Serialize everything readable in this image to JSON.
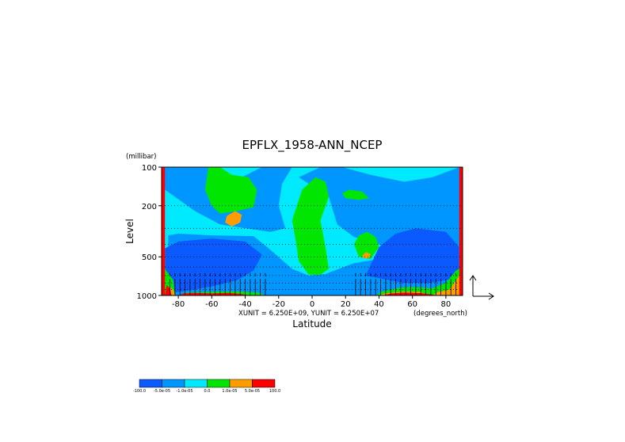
{
  "chart_data": {
    "type": "heatmap",
    "title": "EPFLX_1958-ANN_NCEP",
    "xlabel": "Latitude",
    "ylabel": "Level",
    "y_units": "(millibar)",
    "x_units": "(degrees_north)",
    "x_ticks": [
      -80,
      -60,
      -40,
      -20,
      0,
      20,
      40,
      60,
      80
    ],
    "y_ticks": [
      100,
      200,
      500,
      1000
    ],
    "xlim": [
      -90,
      90
    ],
    "ylim": [
      1000,
      100
    ],
    "y_scale": "log",
    "vector_units": "XUNIT = 6.250E+09, YUNIT = 6.250E+07",
    "colorbar": {
      "levels": [
        "-100.0",
        "-5.0e-05",
        "-1.0e-05",
        "0.0",
        "1.0e-05",
        "5.0e-05",
        "100.0"
      ],
      "colors": [
        "#0a5aff",
        "#0096ff",
        "#00eaff",
        "#00e600",
        "#ff9c00",
        "#ff0000"
      ]
    },
    "regions": [
      {
        "class": 2,
        "poly": [
          [
            -90,
            1000
          ],
          [
            -90,
            100
          ],
          [
            90,
            100
          ],
          [
            90,
            1000
          ]
        ]
      },
      {
        "class": 1,
        "poly": [
          [
            -90,
            100
          ],
          [
            -60,
            100
          ],
          [
            -55,
            150
          ],
          [
            -42,
            120
          ],
          [
            -30,
            100
          ],
          [
            -12,
            100
          ],
          [
            -18,
            135
          ],
          [
            -20,
            200
          ],
          [
            -16,
            300
          ],
          [
            -25,
            320
          ],
          [
            -55,
            280
          ],
          [
            -70,
            220
          ],
          [
            -88,
            150
          ]
        ]
      },
      {
        "class": 1,
        "poly": [
          [
            -8,
            120
          ],
          [
            5,
            100
          ],
          [
            18,
            100
          ],
          [
            35,
            115
          ],
          [
            55,
            130
          ],
          [
            72,
            120
          ],
          [
            88,
            100
          ],
          [
            90,
            100
          ],
          [
            90,
            420
          ],
          [
            82,
            470
          ],
          [
            70,
            450
          ],
          [
            60,
            470
          ],
          [
            45,
            420
          ],
          [
            25,
            350
          ],
          [
            15,
            280
          ],
          [
            10,
            170
          ]
        ]
      },
      {
        "class": 1,
        "poly": [
          [
            -86,
            1000
          ],
          [
            -86,
            340
          ],
          [
            -80,
            330
          ],
          [
            -60,
            340
          ],
          [
            -35,
            345
          ],
          [
            -25,
            440
          ],
          [
            -12,
            620
          ],
          [
            -2,
            700
          ],
          [
            8,
            680
          ],
          [
            25,
            560
          ],
          [
            40,
            520
          ],
          [
            60,
            520
          ],
          [
            80,
            560
          ],
          [
            88,
            760
          ],
          [
            88,
            1000
          ]
        ]
      },
      {
        "class": 0,
        "poly": [
          [
            -88,
            960
          ],
          [
            -88,
            430
          ],
          [
            -80,
            380
          ],
          [
            -60,
            360
          ],
          [
            -40,
            380
          ],
          [
            -30,
            480
          ],
          [
            -35,
            640
          ],
          [
            -45,
            760
          ],
          [
            -60,
            850
          ],
          [
            -75,
            920
          ],
          [
            -85,
            960
          ]
        ]
      },
      {
        "class": 0,
        "poly": [
          [
            32,
            700
          ],
          [
            40,
            420
          ],
          [
            50,
            330
          ],
          [
            62,
            300
          ],
          [
            80,
            320
          ],
          [
            88,
            420
          ],
          [
            88,
            700
          ],
          [
            80,
            760
          ],
          [
            70,
            800
          ],
          [
            55,
            800
          ]
        ]
      },
      {
        "class": 3,
        "poly": [
          [
            -62,
            100
          ],
          [
            -55,
            100
          ],
          [
            -48,
            115
          ],
          [
            -38,
            120
          ],
          [
            -33,
            150
          ],
          [
            -35,
            205
          ],
          [
            -45,
            220
          ],
          [
            -55,
            230
          ],
          [
            -60,
            200
          ],
          [
            -64,
            150
          ]
        ]
      },
      {
        "class": 3,
        "poly": [
          [
            -10,
            360
          ],
          [
            -12,
            260
          ],
          [
            -6,
            150
          ],
          [
            2,
            120
          ],
          [
            8,
            130
          ],
          [
            10,
            170
          ],
          [
            5,
            260
          ],
          [
            8,
            420
          ],
          [
            10,
            620
          ],
          [
            5,
            690
          ],
          [
            -2,
            690
          ],
          [
            -8,
            540
          ]
        ]
      },
      {
        "class": 3,
        "poly": [
          [
            25,
            400
          ],
          [
            28,
            340
          ],
          [
            33,
            320
          ],
          [
            38,
            350
          ],
          [
            40,
            420
          ],
          [
            35,
            520
          ],
          [
            28,
            500
          ]
        ]
      },
      {
        "class": 3,
        "poly": [
          [
            18,
            160
          ],
          [
            22,
            150
          ],
          [
            30,
            155
          ],
          [
            34,
            175
          ],
          [
            28,
            180
          ],
          [
            20,
            175
          ]
        ]
      },
      {
        "class": 3,
        "poly": [
          [
            -90,
            100
          ],
          [
            -89,
            100
          ],
          [
            -88,
            620
          ],
          [
            -83,
            760
          ],
          [
            -82,
            1000
          ],
          [
            -90,
            1000
          ]
        ]
      },
      {
        "class": 3,
        "poly": [
          [
            38,
            1000
          ],
          [
            42,
            930
          ],
          [
            52,
            870
          ],
          [
            60,
            860
          ],
          [
            72,
            880
          ],
          [
            80,
            800
          ],
          [
            86,
            640
          ],
          [
            90,
            600
          ],
          [
            90,
            1000
          ]
        ]
      },
      {
        "class": 3,
        "poly": [
          [
            -80,
            1000
          ],
          [
            -75,
            950
          ],
          [
            -60,
            935
          ],
          [
            -45,
            930
          ],
          [
            -32,
            950
          ],
          [
            -28,
            1000
          ]
        ]
      },
      {
        "class": 4,
        "poly": [
          [
            -51,
            240
          ],
          [
            -46,
            220
          ],
          [
            -42,
            235
          ],
          [
            -43,
            270
          ],
          [
            -48,
            290
          ],
          [
            -52,
            270
          ]
        ]
      },
      {
        "class": 4,
        "poly": [
          [
            30,
            490
          ],
          [
            32,
            460
          ],
          [
            35,
            475
          ],
          [
            34,
            510
          ],
          [
            31,
            515
          ]
        ]
      },
      {
        "class": 4,
        "poly": [
          [
            72,
            1000
          ],
          [
            75,
            940
          ],
          [
            82,
            900
          ],
          [
            86,
            760
          ],
          [
            88,
            700
          ],
          [
            90,
            720
          ],
          [
            90,
            1000
          ]
        ]
      },
      {
        "class": 4,
        "poly": [
          [
            -86,
            1000
          ],
          [
            -85,
            860
          ],
          [
            -83,
            900
          ],
          [
            -82,
            1000
          ]
        ]
      },
      {
        "class": 4,
        "poly": [
          [
            40,
            1000
          ],
          [
            44,
            960
          ],
          [
            55,
            935
          ],
          [
            65,
            940
          ],
          [
            70,
            1000
          ]
        ]
      },
      {
        "class": 5,
        "poly": [
          [
            -90,
            100
          ],
          [
            -88,
            100
          ],
          [
            -88,
            1000
          ],
          [
            -90,
            1000
          ]
        ]
      },
      {
        "class": 5,
        "poly": [
          [
            88,
            100
          ],
          [
            90,
            100
          ],
          [
            90,
            1000
          ],
          [
            88,
            1000
          ]
        ]
      },
      {
        "class": 5,
        "poly": [
          [
            -88,
            1000
          ],
          [
            -87,
            830
          ],
          [
            -85,
            880
          ],
          [
            -84,
            1000
          ]
        ]
      },
      {
        "class": 5,
        "poly": [
          [
            -80,
            1000
          ],
          [
            -77,
            965
          ],
          [
            -70,
            955
          ],
          [
            -60,
            965
          ],
          [
            -50,
            955
          ],
          [
            -42,
            975
          ],
          [
            -38,
            1000
          ]
        ]
      },
      {
        "class": 5,
        "poly": [
          [
            42,
            1000
          ],
          [
            47,
            965
          ],
          [
            55,
            950
          ],
          [
            65,
            958
          ],
          [
            72,
            985
          ],
          [
            74,
            1000
          ]
        ]
      }
    ]
  }
}
